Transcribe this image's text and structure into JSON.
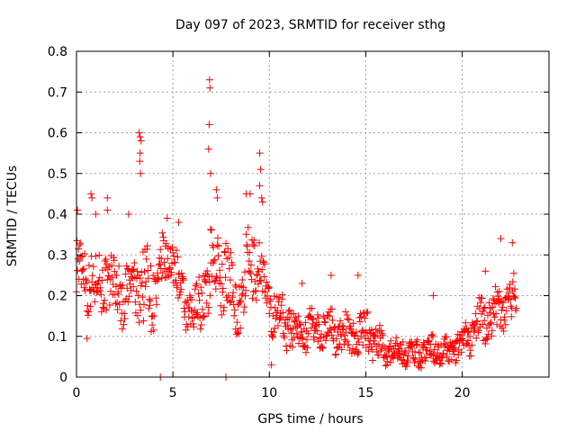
{
  "chart_data": {
    "type": "scatter",
    "title": "Day 097 of 2023, SRMTID for receiver sthg",
    "xlabel": "GPS time / hours",
    "ylabel": "SRMTID / TECUs",
    "xlim": [
      0,
      24.5
    ],
    "ylim": [
      0,
      0.8
    ],
    "xticks": [
      0,
      5,
      10,
      15,
      20
    ],
    "yticks": [
      0,
      0.1,
      0.2,
      0.3,
      0.4,
      0.5,
      0.6,
      0.7,
      0.8
    ],
    "xtick_labels": [
      "0",
      "5",
      "10",
      "15",
      "20"
    ],
    "ytick_labels": [
      "0",
      "0.1",
      "0.2",
      "0.3",
      "0.4",
      "0.5",
      "0.6",
      "0.7",
      "0.8"
    ],
    "grid": true,
    "marker": "+",
    "color": "#ff0000",
    "series_profile": {
      "x_start": 0.0,
      "x_end": 22.8,
      "step": 0.025,
      "envelope_x": [
        0,
        0.5,
        1,
        1.5,
        2,
        2.5,
        3,
        3.4,
        4,
        4.5,
        5,
        5.5,
        6,
        6.5,
        7,
        7.5,
        8,
        8.5,
        9,
        9.5,
        10,
        10.5,
        11,
        11.5,
        12,
        13,
        14,
        15,
        15.5,
        16,
        17,
        18,
        18.5,
        19,
        19.5,
        20,
        20.5,
        21,
        21.5,
        22,
        22.5,
        22.8
      ],
      "envelope_center": [
        0.27,
        0.25,
        0.23,
        0.24,
        0.22,
        0.2,
        0.22,
        0.24,
        0.2,
        0.27,
        0.3,
        0.18,
        0.15,
        0.19,
        0.27,
        0.26,
        0.23,
        0.17,
        0.28,
        0.27,
        0.17,
        0.15,
        0.13,
        0.11,
        0.12,
        0.12,
        0.1,
        0.11,
        0.09,
        0.07,
        0.06,
        0.06,
        0.07,
        0.06,
        0.07,
        0.08,
        0.11,
        0.14,
        0.15,
        0.17,
        0.18,
        0.2
      ],
      "envelope_spread": [
        0.08,
        0.07,
        0.06,
        0.07,
        0.06,
        0.06,
        0.07,
        0.09,
        0.08,
        0.06,
        0.05,
        0.05,
        0.05,
        0.06,
        0.08,
        0.07,
        0.07,
        0.07,
        0.08,
        0.07,
        0.05,
        0.05,
        0.05,
        0.04,
        0.04,
        0.04,
        0.04,
        0.05,
        0.04,
        0.03,
        0.03,
        0.03,
        0.03,
        0.03,
        0.03,
        0.03,
        0.04,
        0.05,
        0.05,
        0.05,
        0.05,
        0.06
      ]
    },
    "peaks": [
      {
        "x": 0.05,
        "y": 0.41
      },
      {
        "x": 0.75,
        "y": 0.45
      },
      {
        "x": 0.8,
        "y": 0.44
      },
      {
        "x": 1.6,
        "y": 0.44
      },
      {
        "x": 1.6,
        "y": 0.41
      },
      {
        "x": 3.25,
        "y": 0.6
      },
      {
        "x": 3.3,
        "y": 0.59
      },
      {
        "x": 3.35,
        "y": 0.58
      },
      {
        "x": 3.3,
        "y": 0.55
      },
      {
        "x": 3.28,
        "y": 0.53
      },
      {
        "x": 3.32,
        "y": 0.5
      },
      {
        "x": 6.9,
        "y": 0.73
      },
      {
        "x": 6.92,
        "y": 0.71
      },
      {
        "x": 6.88,
        "y": 0.62
      },
      {
        "x": 6.85,
        "y": 0.56
      },
      {
        "x": 6.95,
        "y": 0.5
      },
      {
        "x": 7.25,
        "y": 0.46
      },
      {
        "x": 7.3,
        "y": 0.44
      },
      {
        "x": 8.8,
        "y": 0.45
      },
      {
        "x": 9.0,
        "y": 0.45
      },
      {
        "x": 9.5,
        "y": 0.55
      },
      {
        "x": 9.55,
        "y": 0.51
      },
      {
        "x": 9.5,
        "y": 0.47
      },
      {
        "x": 9.6,
        "y": 0.44
      },
      {
        "x": 9.65,
        "y": 0.43
      },
      {
        "x": 4.7,
        "y": 0.39
      },
      {
        "x": 4.35,
        "y": 0.0
      },
      {
        "x": 7.75,
        "y": 0.0
      },
      {
        "x": 0.55,
        "y": 0.095
      },
      {
        "x": 1.0,
        "y": 0.4
      },
      {
        "x": 2.7,
        "y": 0.4
      },
      {
        "x": 5.3,
        "y": 0.38
      },
      {
        "x": 18.5,
        "y": 0.2
      },
      {
        "x": 22.0,
        "y": 0.34
      },
      {
        "x": 22.6,
        "y": 0.33
      },
      {
        "x": 14.6,
        "y": 0.25
      },
      {
        "x": 13.2,
        "y": 0.25
      },
      {
        "x": 11.7,
        "y": 0.23
      },
      {
        "x": 21.2,
        "y": 0.26
      },
      {
        "x": 10.1,
        "y": 0.03
      }
    ]
  }
}
